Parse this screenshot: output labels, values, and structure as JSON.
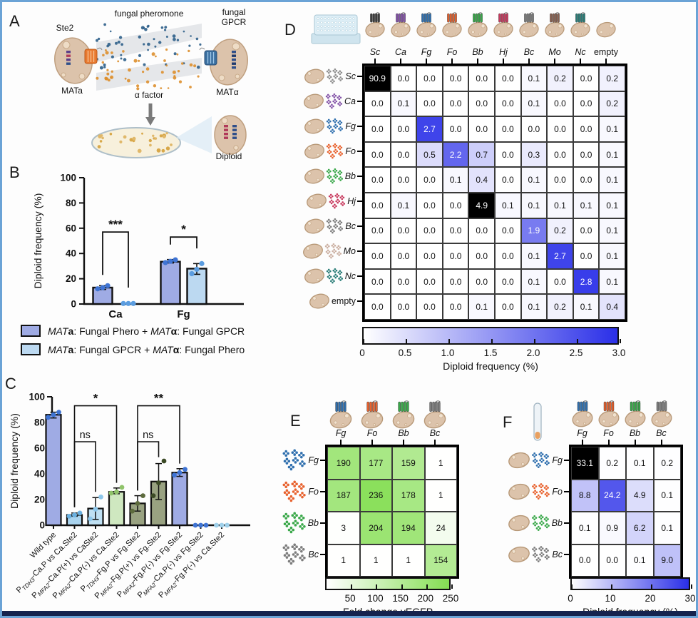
{
  "panels": {
    "A": "A",
    "B": "B",
    "C": "C",
    "D": "D",
    "E": "E",
    "F": "F"
  },
  "panelA": {
    "ste2": "Ste2",
    "mata": "MATa",
    "pheromone": "fungal pheromone",
    "alpha_factor": "α factor",
    "gpcr_line1": "fungal",
    "gpcr_line2": "GPCR",
    "matalpha": "MATα",
    "diploid": "Diploid",
    "mata_gpcr_color": "#e87a30",
    "matalpha_gpcr_color": "#3a6f9f",
    "pheromone_dot_color": "#2e5f8a",
    "alpha_dot_color": "#dd8f2e"
  },
  "species": [
    {
      "id": "Sc",
      "color": "#3f3f3f",
      "phero_color": "#8f8f8f"
    },
    {
      "id": "Ca",
      "color": "#8454a8"
    },
    {
      "id": "Fg",
      "color": "#2f6fae"
    },
    {
      "id": "Fo",
      "color": "#e8622e"
    },
    {
      "id": "Bb",
      "color": "#3aa84a"
    },
    {
      "id": "Hj",
      "color": "#c83a5e"
    },
    {
      "id": "Bc",
      "color": "#7d7d7d"
    },
    {
      "id": "Mo",
      "color": "#8a6252",
      "phero_color": "#cbb0a2"
    },
    {
      "id": "Nc",
      "color": "#2a7d78"
    },
    {
      "id": "empty",
      "color": null
    }
  ],
  "chart_data": [
    {
      "id": "B",
      "type": "bar",
      "panel": "B",
      "ylabel": "Diploid frequency (%)",
      "ylim": [
        0,
        100
      ],
      "yticks": [
        0,
        20,
        40,
        60,
        80,
        100
      ],
      "categories": [
        "Ca",
        "Fg"
      ],
      "series": [
        {
          "name": "MATa: Fungal Phero  + MATα: Fungal GPCR",
          "color": "#9fabe4",
          "dot_color": "#3f74d4",
          "values": [
            13,
            33.5
          ],
          "points": [
            [
              12,
              13,
              14.5
            ],
            [
              32.8,
              33.8,
              35
            ]
          ],
          "errbar": [
            [
              11.5,
              14.5
            ],
            [
              32.5,
              35.2
            ]
          ]
        },
        {
          "name": "MATa: Fungal GPCR + MATα: Fungal Phero",
          "color": "#bcd9f1",
          "dot_color": "#5b9de0",
          "values": [
            0.4,
            28
          ],
          "points": [
            [
              0.4,
              0.4,
              0.4
            ],
            [
              24,
              27.5,
              32
            ]
          ],
          "errbar": [
            [
              0.4,
              0.4
            ],
            [
              23.5,
              32
            ]
          ]
        }
      ],
      "significance": [
        {
          "category": "Ca",
          "label": "***",
          "bar_y": 57,
          "leg1_y": 23,
          "leg2_y": 13
        },
        {
          "category": "Fg",
          "label": "*",
          "bar_y": 53,
          "leg1_y": 47,
          "leg2_y": 44
        }
      ]
    },
    {
      "id": "C",
      "type": "bar",
      "panel": "C",
      "ylabel": "Diploid frequency (%)",
      "ylim": [
        0,
        100
      ],
      "yticks": [
        0,
        20,
        40,
        60,
        80,
        100
      ],
      "categories": [
        "Wild type",
        "P_TDH3-Ca.P vs Ca.Ste2",
        "P_MFA2-Ca.P(+) vs CaSte2",
        "P_MFA2-Ca.P(-) vs Ca.Ste2",
        "P_TDH3-Fg.P vs Fg.Ste2",
        "P_MFA2-Fg.P(+) vs Fg.Ste2",
        "P_MFA2-Fg.P(-) vs Fg.Ste2",
        "P_MFA2-Ca.P(-) vs Fg.Ste2",
        "P_MFA2-Fg.P(-) vs Ca.Ste2"
      ],
      "values": [
        86,
        8,
        13,
        26,
        17,
        34,
        41,
        0,
        0
      ],
      "bar_colors": [
        "#9fabe4",
        "#a9d3ee",
        "#bfe0f3",
        "#cfe8c0",
        "#99a281",
        "#99a281",
        "#9fabe4",
        "none",
        "none"
      ],
      "dot_colors": [
        "#3f74d4",
        "#6ab0e0",
        "#8cc6ea",
        "#8fc36a",
        "#5d6b3d",
        "#3c4a26",
        "#3f74d4",
        "#3f74d4",
        "#9fd0ea"
      ],
      "points": [
        [
          84,
          86,
          88
        ],
        [
          7,
          8,
          9.5
        ],
        [
          5,
          12.5,
          22
        ],
        [
          25,
          26,
          29.5
        ],
        [
          11,
          17,
          23
        ],
        [
          23,
          33,
          50
        ],
        [
          39,
          41,
          43.5
        ],
        [
          0,
          0,
          0
        ],
        [
          0,
          0,
          0
        ]
      ],
      "errbars": [
        [
          83.5,
          88
        ],
        [
          7,
          9.5
        ],
        [
          4.5,
          21.5
        ],
        [
          24.5,
          29
        ],
        [
          11,
          23
        ],
        [
          20,
          48
        ],
        [
          38,
          44
        ],
        null,
        null
      ],
      "significance": [
        {
          "from": 1,
          "to": 3,
          "label": "*",
          "bar_y": 93,
          "leg1_y": 14,
          "leg2_y": 33
        },
        {
          "from": 1,
          "to": 2,
          "label": "ns",
          "bar_y": 65,
          "leg1_y": 14,
          "leg2_y": 26
        },
        {
          "from": 4,
          "to": 6,
          "label": "**",
          "bar_y": 93,
          "leg1_y": 27,
          "leg2_y": 48
        },
        {
          "from": 4,
          "to": 5,
          "label": "ns",
          "bar_y": 65,
          "leg1_y": 27,
          "leg2_y": 53
        }
      ]
    },
    {
      "id": "D",
      "type": "heatmap",
      "panel": "D",
      "rows": [
        "Sc",
        "Ca",
        "Fg",
        "Fo",
        "Bb",
        "Hj",
        "Bc",
        "Mo",
        "Nc",
        "empty"
      ],
      "cols": [
        "Sc",
        "Ca",
        "Fg",
        "Fo",
        "Bb",
        "Hj",
        "Bc",
        "Mo",
        "Nc",
        "empty"
      ],
      "values": [
        [
          90.9,
          0.0,
          0.0,
          0.0,
          0.0,
          0.0,
          0.1,
          0.2,
          0.0,
          0.2
        ],
        [
          0.0,
          0.1,
          0.0,
          0.0,
          0.0,
          0.0,
          0.1,
          0.0,
          0.0,
          0.2
        ],
        [
          0.0,
          0.0,
          2.7,
          0.0,
          0.0,
          0.0,
          0.0,
          0.0,
          0.0,
          0.1
        ],
        [
          0.0,
          0.0,
          0.5,
          2.2,
          0.7,
          0.0,
          0.3,
          0.0,
          0.0,
          0.1
        ],
        [
          0.0,
          0.0,
          0.0,
          0.1,
          0.4,
          0.0,
          0.1,
          0.0,
          0.0,
          0.1
        ],
        [
          0.0,
          0.1,
          0.0,
          0.0,
          4.9,
          0.1,
          0.1,
          0.1,
          0.1,
          0.1
        ],
        [
          0.0,
          0.0,
          0.0,
          0.0,
          0.0,
          0.0,
          1.9,
          0.2,
          0.0,
          0.1
        ],
        [
          0.0,
          0.0,
          0.0,
          0.0,
          0.0,
          0.0,
          0.1,
          2.7,
          0.0,
          0.1
        ],
        [
          0.0,
          0.0,
          0.0,
          0.0,
          0.0,
          0.0,
          0.1,
          0.0,
          2.8,
          0.1
        ],
        [
          0.0,
          0.0,
          0.0,
          0.0,
          0.1,
          0.0,
          0.1,
          0.2,
          0.1,
          0.4
        ]
      ],
      "decimals": 1,
      "scale": {
        "min": 0,
        "max": 3,
        "base_color": "#2a2fe8",
        "over_color": "#000000"
      },
      "colorbar": {
        "ticks": [
          "0",
          "0.5",
          "1.0",
          "1.5",
          "2.0",
          "2.5",
          "3.0"
        ],
        "label": "Diploid frequency (%)"
      }
    },
    {
      "id": "E",
      "type": "heatmap",
      "panel": "E",
      "rows": [
        "Fg",
        "Fo",
        "Bb",
        "Bc"
      ],
      "cols": [
        "Fg",
        "Fo",
        "Bb",
        "Bc"
      ],
      "values": [
        [
          190,
          177,
          159,
          1
        ],
        [
          187,
          236,
          178,
          1
        ],
        [
          3,
          204,
          194,
          24
        ],
        [
          1,
          1,
          1,
          154
        ]
      ],
      "decimals": 0,
      "scale": {
        "min": 0,
        "max": 250,
        "base_color": "#84de52",
        "over_color": "#000000"
      },
      "colorbar": {
        "ticks": [
          "50",
          "100",
          "150",
          "200",
          "250"
        ],
        "label": "Fold change yEGFP"
      }
    },
    {
      "id": "F",
      "type": "heatmap",
      "panel": "F",
      "rows": [
        "Fg",
        "Fo",
        "Bb",
        "Bc"
      ],
      "cols": [
        "Fg",
        "Fo",
        "Bb",
        "Bc"
      ],
      "values": [
        [
          33.1,
          0.2,
          0.1,
          0.2
        ],
        [
          8.8,
          24.2,
          4.9,
          0.1
        ],
        [
          0.1,
          0.9,
          6.2,
          0.1
        ],
        [
          0.0,
          0.0,
          0.1,
          9.0
        ]
      ],
      "decimals": 1,
      "scale": {
        "min": 0,
        "max": 30,
        "base_color": "#2a2fe8",
        "over_color": "#000000"
      },
      "colorbar": {
        "ticks": [
          "0",
          "10",
          "20",
          "30"
        ],
        "label": "Diploid frequency (%)"
      }
    }
  ]
}
